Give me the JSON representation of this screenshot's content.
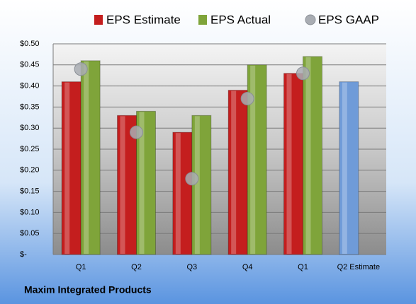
{
  "chart_data": {
    "type": "bar",
    "footer": "Maxim Integrated Products",
    "categories": [
      "Q1",
      "Q2",
      "Q3",
      "Q4",
      "Q1",
      "Q2 Estimate"
    ],
    "series": [
      {
        "name": "EPS Estimate",
        "color": "#c41e1e",
        "colors": [
          "#c41e1e",
          "#c41e1e",
          "#c41e1e",
          "#c41e1e",
          "#c41e1e",
          "#6f9bd8"
        ],
        "values": [
          0.41,
          0.33,
          0.29,
          0.39,
          0.43,
          0.41
        ]
      },
      {
        "name": "EPS Actual",
        "color": "#7fa43a",
        "values": [
          0.46,
          0.34,
          0.33,
          0.45,
          0.47,
          null
        ]
      },
      {
        "name": "EPS GAAP",
        "color": "#a9adb3",
        "marker": "circle",
        "values": [
          0.44,
          0.29,
          0.18,
          0.37,
          0.43,
          null
        ]
      }
    ],
    "ylim": [
      0,
      0.5
    ],
    "yticks": [
      {
        "value": 0,
        "label": "$-"
      },
      {
        "value": 0.05,
        "label": "$0.05"
      },
      {
        "value": 0.1,
        "label": "$0.10"
      },
      {
        "value": 0.15,
        "label": "$0.15"
      },
      {
        "value": 0.2,
        "label": "$0.20"
      },
      {
        "value": 0.25,
        "label": "$0.25"
      },
      {
        "value": 0.3,
        "label": "$0.30"
      },
      {
        "value": 0.35,
        "label": "$0.35"
      },
      {
        "value": 0.4,
        "label": "$0.40"
      },
      {
        "value": 0.45,
        "label": "$0.45"
      },
      {
        "value": 0.5,
        "label": "$0.50"
      }
    ],
    "grid": true
  }
}
